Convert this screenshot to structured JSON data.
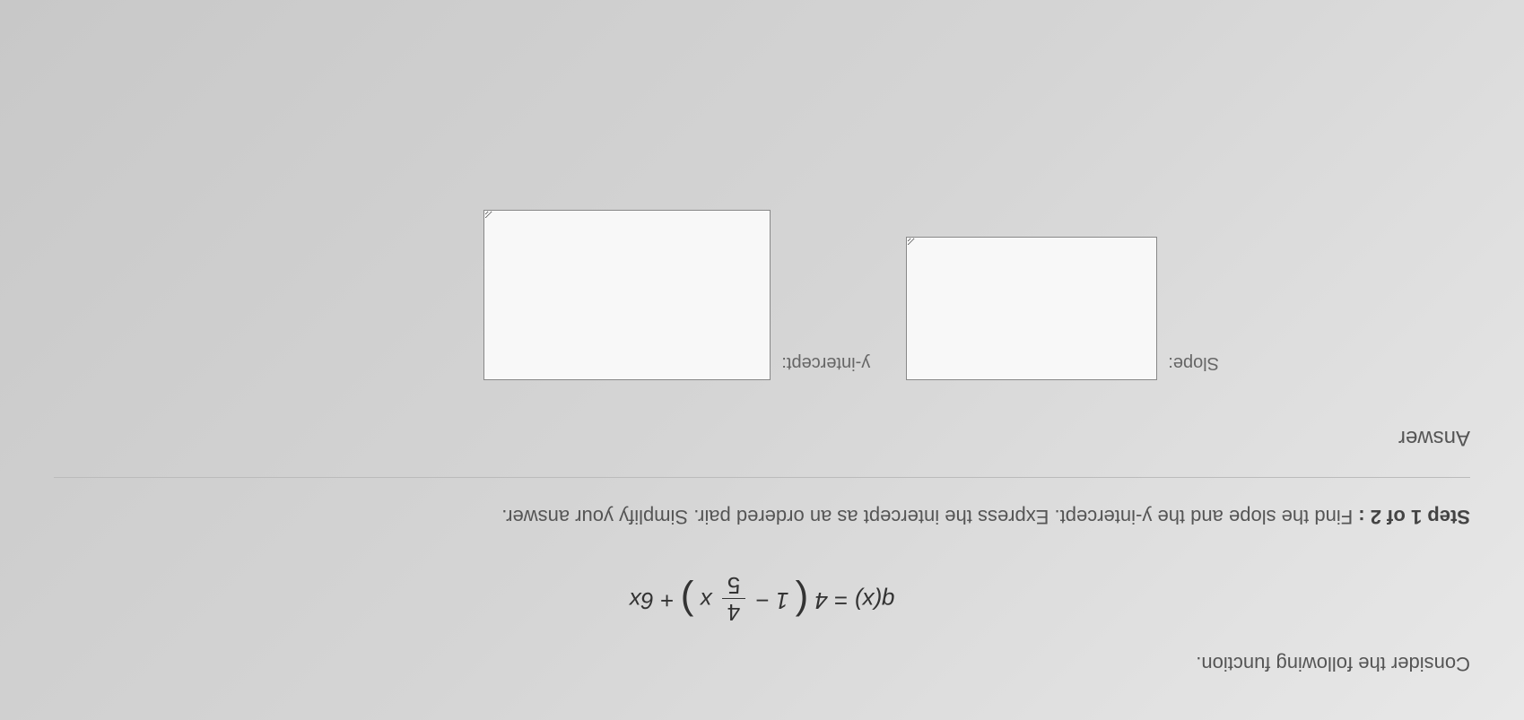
{
  "question": {
    "intro": "Consider the following function.",
    "equation": {
      "lhs": "q(x)",
      "eq": "=",
      "coef": "4",
      "inside_left": "1",
      "frac_num": "4",
      "frac_den": "5",
      "inside_var": "x",
      "tail": "+ 6x"
    }
  },
  "step": {
    "label": "Step 1 of 2 :",
    "text": "Find the slope and the y-intercept. Express the intercept as an ordered pair. Simplify your answer."
  },
  "answer": {
    "heading": "Answer",
    "slope_label": "Slope:",
    "yint_label": "y-intercept:"
  },
  "colors": {
    "text_primary": "#555555",
    "text_dark": "#333333",
    "border": "#888888",
    "background": "#f5f5f5"
  }
}
